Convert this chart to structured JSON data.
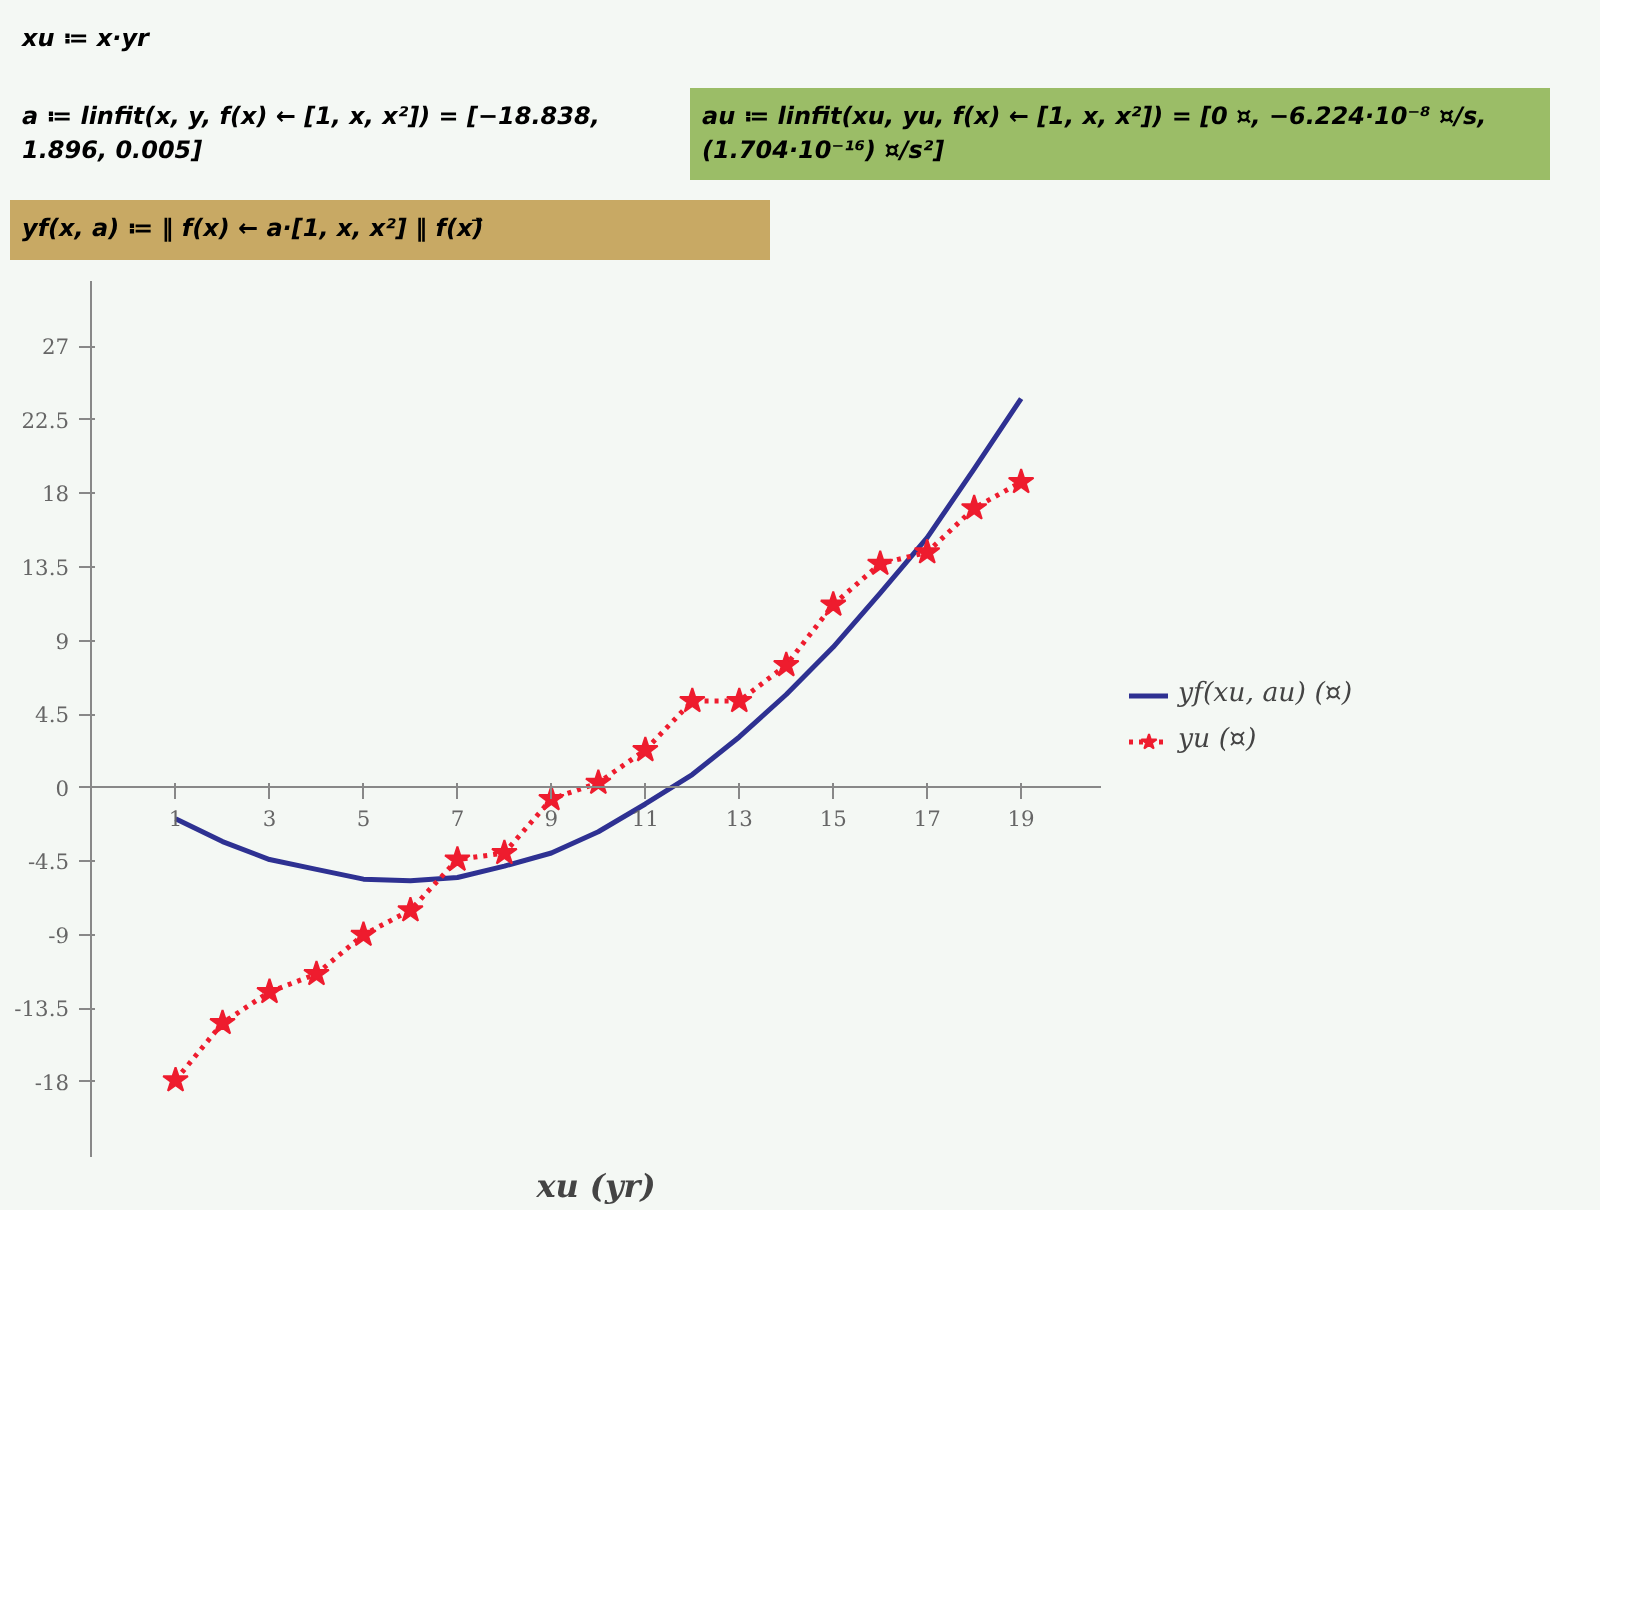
{
  "chart_data": {
    "type": "line",
    "annotations": [
      "xu ≔ x·yr",
      "a ≔ linfit(x, y, f(x) ← [1, x, x²]) = [−18.838, 1.896, 0.005]",
      "au ≔ linfit(xu, yu, f(x) ← [1, x, x²]) = [0 ¤, −6.224·10⁻⁸ ¤/s, (1.704·10⁻¹⁶) ¤/s²]",
      "yf(x, a) ≔ ‖ f(x) ← a·[1, x, x²] ‖ f(x)⃗"
    ],
    "xlabel": "xu (yr)",
    "x": [
      1,
      2,
      3,
      4,
      5,
      6,
      7,
      8,
      9,
      10,
      11,
      12,
      13,
      14,
      15,
      16,
      17,
      18,
      19
    ],
    "series": [
      {
        "name": "yf(xu, au) (¤)",
        "color": "#2e3192",
        "marker": "none",
        "line_style": "solid",
        "x": [
          1,
          2,
          3,
          4,
          5,
          6,
          7,
          8,
          9,
          10,
          11,
          12,
          13,
          14,
          15,
          16,
          17,
          18,
          19
        ],
        "values": [
          -1.9,
          -3.3,
          -4.4,
          -5.0,
          -5.6,
          -5.7,
          -5.5,
          -4.8,
          -4.0,
          -2.7,
          -1.0,
          0.8,
          3.1,
          5.7,
          8.6,
          11.9,
          15.3,
          19.5,
          23.8
        ]
      },
      {
        "name": "yu (¤)",
        "color": "#ee1c2e",
        "marker": "star",
        "line_style": "dotted",
        "values": [
          -17.9,
          -14.4,
          -12.5,
          -11.4,
          -9.0,
          -7.5,
          -4.4,
          -4.0,
          -0.7,
          0.3,
          2.3,
          5.3,
          5.3,
          7.5,
          11.2,
          13.7,
          14.4,
          17.1,
          18.7
        ]
      }
    ],
    "xlim": [
      -0.8,
      20.7
    ],
    "ylim": [
      -22.6,
      31
    ],
    "xticks": [
      1,
      3,
      5,
      7,
      9,
      11,
      13,
      15,
      17,
      19
    ],
    "yticks": [
      -18,
      -13.5,
      -9,
      -4.5,
      0,
      4.5,
      9,
      13.5,
      18,
      22.5,
      27
    ],
    "grid": false,
    "legend": "right"
  }
}
